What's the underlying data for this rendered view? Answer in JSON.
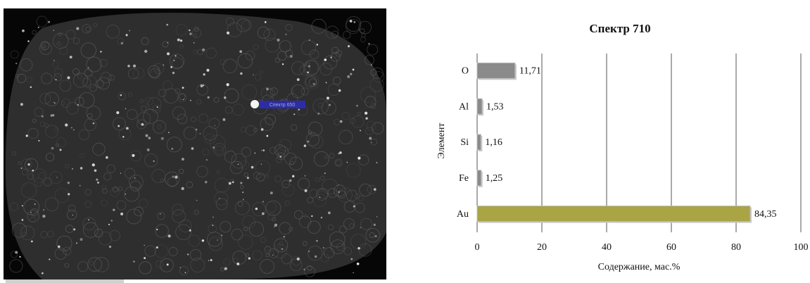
{
  "image": {
    "label": "Спектр 650"
  },
  "chart_data": {
    "type": "barh",
    "title": "Спектр 710",
    "categories": [
      "O",
      "Al",
      "Si",
      "Fe",
      "Au"
    ],
    "values": [
      11.71,
      1.53,
      1.16,
      1.25,
      84.35
    ],
    "value_labels": [
      "11,71",
      "1,53",
      "1,16",
      "1,25",
      "84,35"
    ],
    "colors": [
      "#8a8a8a",
      "#8a8a8a",
      "#8a8a8a",
      "#8a8a8a",
      "#a9a444"
    ],
    "xlabel": "Содержание, мас.%",
    "ylabel": "Элемент",
    "xlim": [
      0,
      100
    ],
    "xticks": [
      0,
      20,
      40,
      60,
      80,
      100
    ],
    "grid": true
  }
}
